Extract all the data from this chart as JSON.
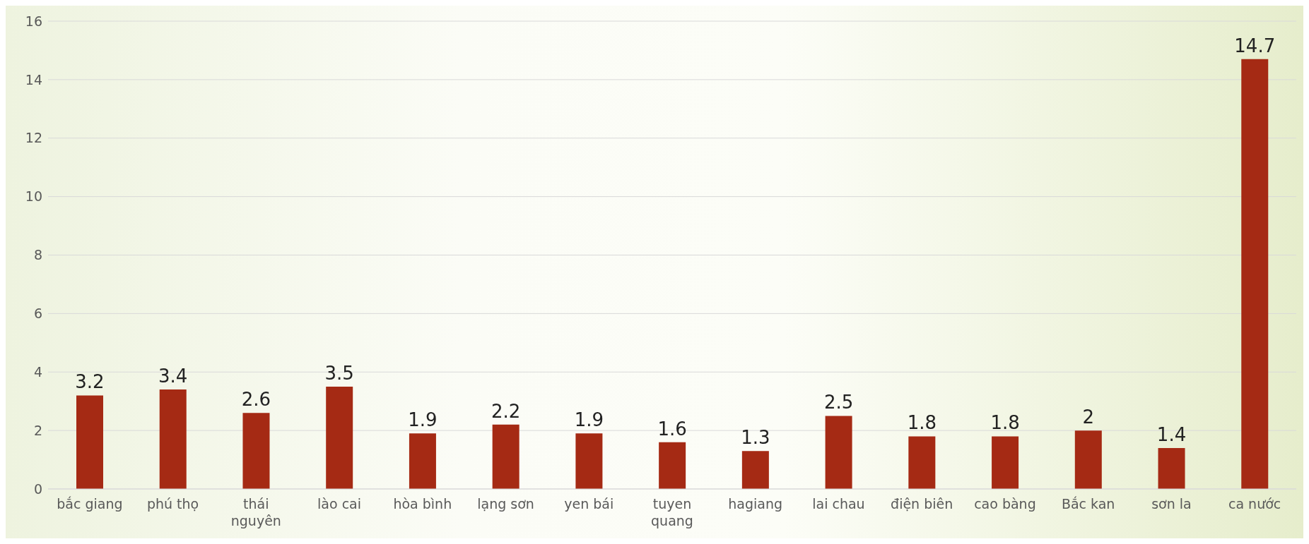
{
  "chart_data": {
    "type": "bar",
    "categories": [
      "bắc giang",
      "phú thọ",
      "thái nguyên",
      "lào cai",
      "hòa bình",
      "lạng sơn",
      "yen bái",
      "tuyen quang",
      "hagiang",
      "lai chau",
      "điện biên",
      "cao bàng",
      "Bắc kan",
      "sơn la",
      "ca nước"
    ],
    "values": [
      3.2,
      3.4,
      2.6,
      3.5,
      1.9,
      2.2,
      1.9,
      1.6,
      1.3,
      2.5,
      1.8,
      1.8,
      2,
      1.4,
      14.7
    ],
    "color": "#a52a14",
    "ylim": [
      0,
      16
    ],
    "yticks": [
      0,
      2,
      4,
      6,
      8,
      10,
      12,
      14,
      16
    ],
    "grid": "y",
    "data_labels": true
  }
}
